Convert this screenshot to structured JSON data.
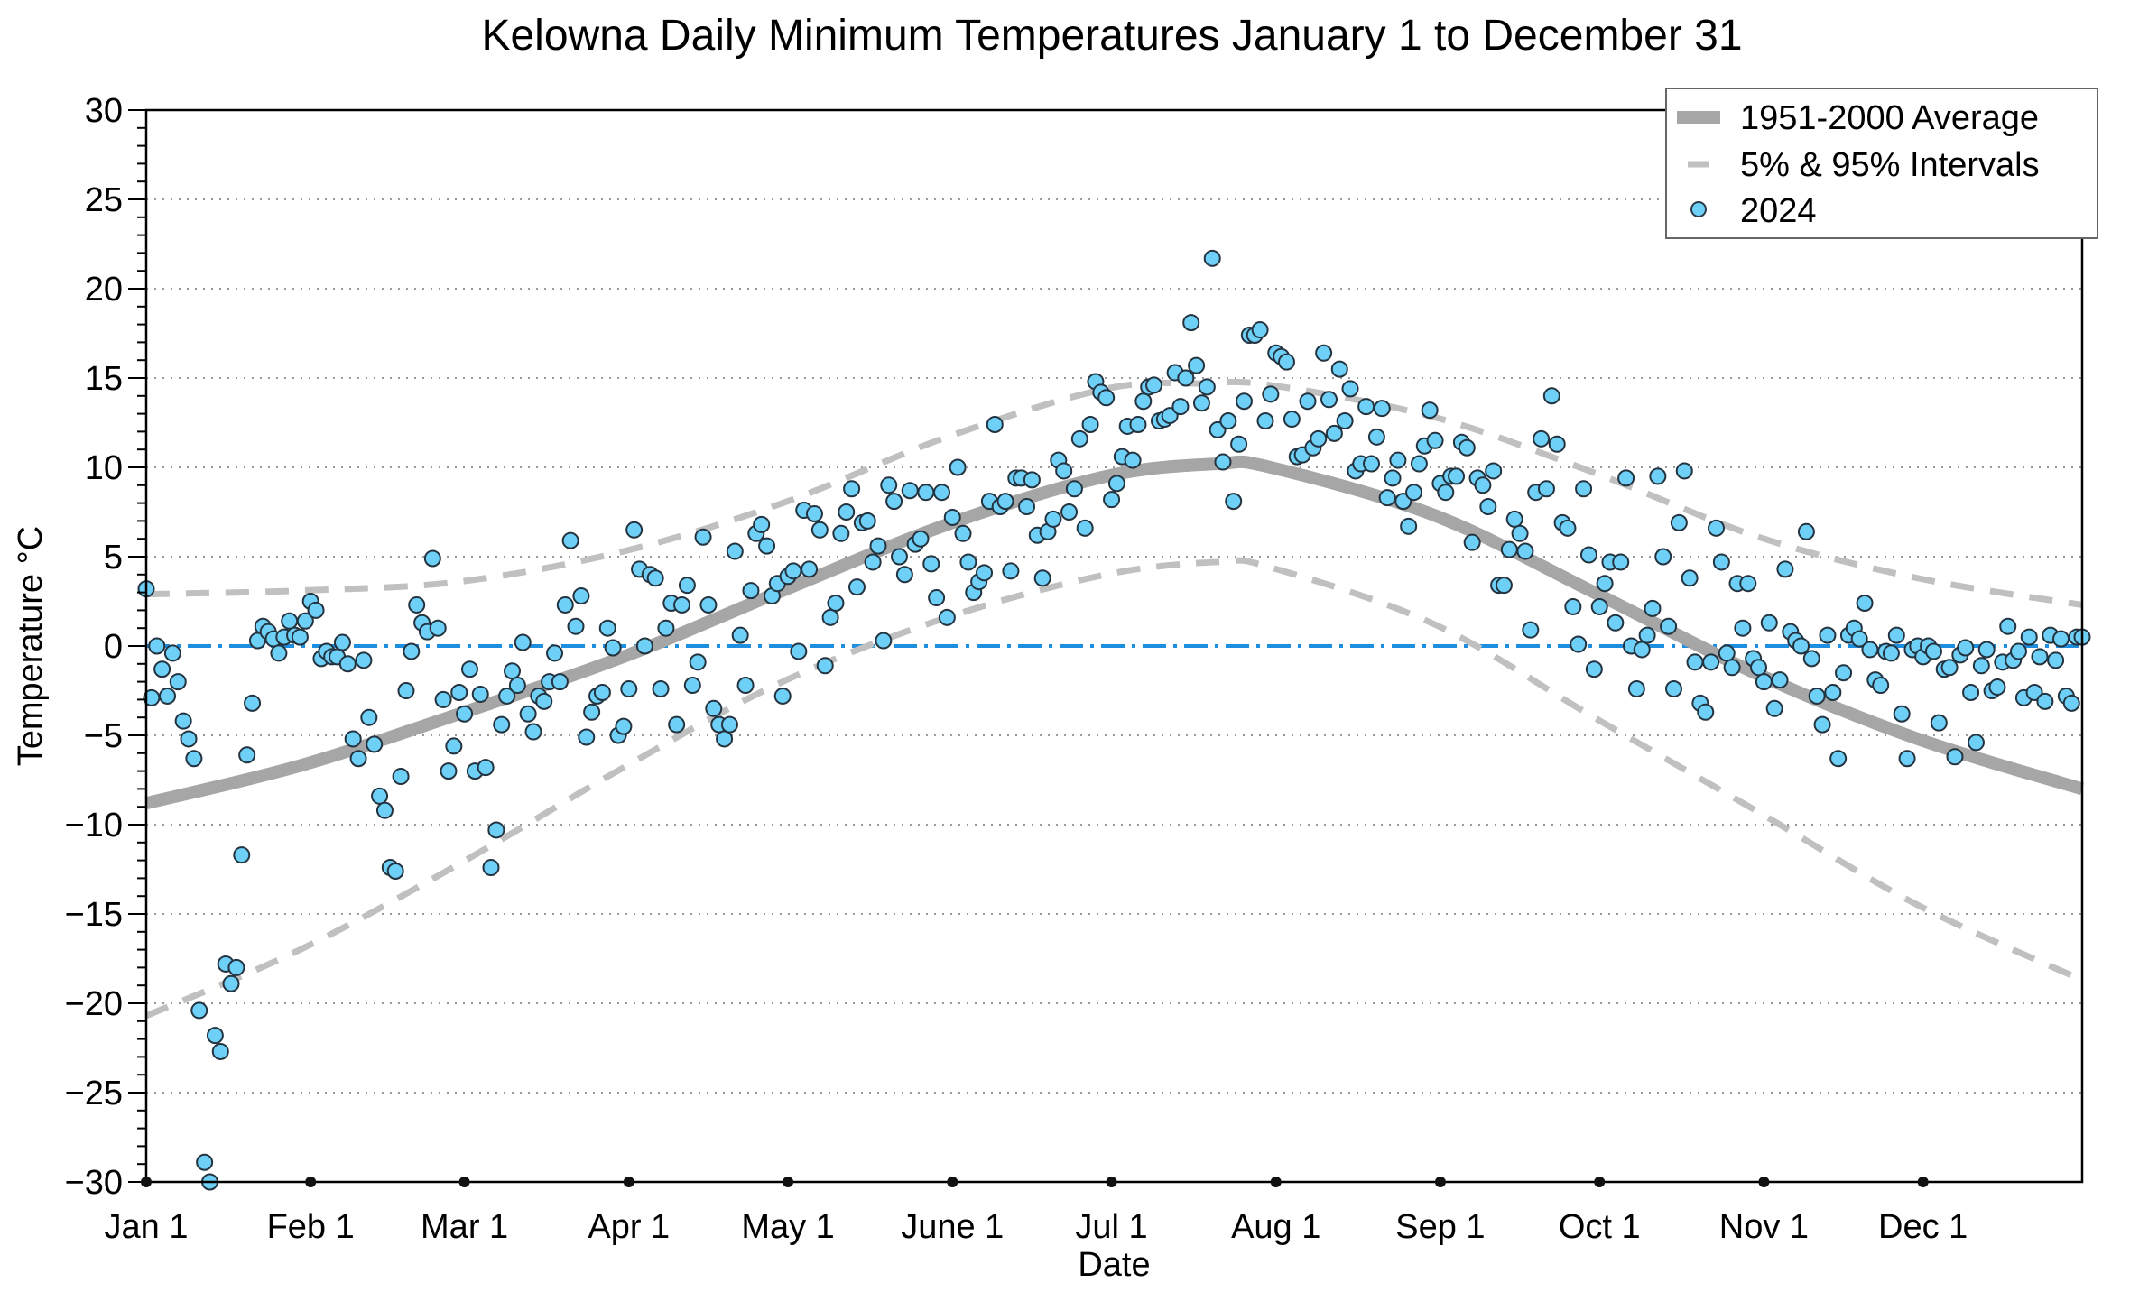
{
  "chart_data": {
    "type": "scatter",
    "title": "Kelowna Daily Minimum Temperatures January 1 to December 31",
    "xlabel": "Date",
    "ylabel": "Temperature °C",
    "xlim": [
      1,
      366
    ],
    "ylim": [
      -30,
      30
    ],
    "grid": "horizontal-dotted",
    "legend_position": "top-right",
    "y_ticks": [
      30,
      25,
      20,
      15,
      10,
      5,
      0,
      -5,
      -10,
      -15,
      -20,
      -25,
      -30
    ],
    "y_tick_labels": [
      "30",
      "25",
      "20",
      "15",
      "10",
      "5",
      "0",
      "−5",
      "−10",
      "−15",
      "−20",
      "−25",
      "−30"
    ],
    "x_ticks": [
      {
        "day": 1,
        "label": "Jan 1"
      },
      {
        "day": 32,
        "label": "Feb 1"
      },
      {
        "day": 61,
        "label": "Mar 1"
      },
      {
        "day": 92,
        "label": "Apr 1"
      },
      {
        "day": 122,
        "label": "May 1"
      },
      {
        "day": 153,
        "label": "June 1"
      },
      {
        "day": 183,
        "label": "Jul 1"
      },
      {
        "day": 214,
        "label": "Aug 1"
      },
      {
        "day": 245,
        "label": "Sep 1"
      },
      {
        "day": 275,
        "label": "Oct 1"
      },
      {
        "day": 306,
        "label": "Nov 1"
      },
      {
        "day": 336,
        "label": "Dec 1"
      }
    ],
    "legend": [
      {
        "label": "1951-2000 Average",
        "style": "thick-solid",
        "color": "#a6a6a6"
      },
      {
        "label": "5% & 95% Intervals",
        "style": "dashed",
        "color": "#c0c0c0"
      },
      {
        "label": "2024",
        "style": "marker",
        "color": "#6fd0f7"
      }
    ],
    "zero_line": {
      "value": 0,
      "color": "#1e8fe0",
      "style": "dash-dot"
    },
    "series": [
      {
        "name": "1951-2000 Average",
        "color": "#a6a6a6",
        "x": [
          1,
          30,
          60,
          91,
          121,
          152,
          182,
          203,
          213,
          244,
          274,
          305,
          335,
          366
        ],
        "y": [
          -8.8,
          -6.7,
          -3.8,
          -0.6,
          3.1,
          6.8,
          9.5,
          10.2,
          10.0,
          7.3,
          3.0,
          -1.6,
          -5.2,
          -8.0
        ]
      },
      {
        "name": "95% Interval",
        "color": "#c0c0c0",
        "x": [
          1,
          30,
          60,
          91,
          121,
          152,
          182,
          200,
          213,
          244,
          274,
          305,
          335,
          366
        ],
        "y": [
          2.9,
          3.1,
          3.6,
          5.3,
          8.0,
          11.7,
          14.4,
          14.7,
          14.6,
          12.8,
          9.7,
          6.1,
          3.8,
          2.3
        ]
      },
      {
        "name": "5% Interval",
        "color": "#c0c0c0",
        "x": [
          1,
          30,
          60,
          91,
          121,
          152,
          182,
          203,
          213,
          244,
          274,
          305,
          335,
          366
        ],
        "y": [
          -20.7,
          -17.0,
          -12.2,
          -6.8,
          -2.0,
          1.6,
          4.0,
          4.7,
          4.4,
          1.2,
          -4.0,
          -9.3,
          -14.5,
          -18.7
        ]
      },
      {
        "name": "2024",
        "color": "#6fd0f7",
        "x": [
          1,
          2,
          3,
          4,
          5,
          6,
          7,
          8,
          9,
          10,
          11,
          12,
          13,
          14,
          15,
          16,
          17,
          18,
          19,
          20,
          21,
          22,
          23,
          24,
          25,
          26,
          27,
          28,
          29,
          30,
          31,
          32,
          33,
          34,
          35,
          36,
          37,
          38,
          39,
          40,
          41,
          42,
          43,
          44,
          45,
          46,
          47,
          48,
          49,
          50,
          51,
          52,
          53,
          54,
          55,
          56,
          57,
          58,
          59,
          60,
          61,
          62,
          63,
          64,
          65,
          66,
          67,
          68,
          69,
          70,
          71,
          72,
          73,
          74,
          75,
          76,
          77,
          78,
          79,
          80,
          81,
          82,
          83,
          84,
          85,
          86,
          87,
          88,
          89,
          90,
          91,
          92,
          93,
          94,
          95,
          96,
          97,
          98,
          99,
          100,
          101,
          102,
          103,
          104,
          105,
          106,
          107,
          108,
          109,
          110,
          111,
          112,
          113,
          114,
          115,
          116,
          117,
          118,
          119,
          120,
          121,
          122,
          123,
          124,
          125,
          126,
          127,
          128,
          129,
          130,
          131,
          132,
          133,
          134,
          135,
          136,
          137,
          138,
          139,
          140,
          141,
          142,
          143,
          144,
          145,
          146,
          147,
          148,
          149,
          150,
          151,
          152,
          153,
          154,
          155,
          156,
          157,
          158,
          159,
          160,
          161,
          162,
          163,
          164,
          165,
          166,
          167,
          168,
          169,
          170,
          171,
          172,
          173,
          174,
          175,
          176,
          177,
          178,
          179,
          180,
          181,
          182,
          183,
          184,
          185,
          186,
          187,
          188,
          189,
          190,
          191,
          192,
          193,
          194,
          195,
          196,
          197,
          198,
          199,
          200,
          201,
          202,
          203,
          204,
          205,
          206,
          207,
          208,
          209,
          210,
          211,
          212,
          213,
          214,
          215,
          216,
          217,
          218,
          219,
          220,
          221,
          222,
          223,
          224,
          225,
          226,
          227,
          228,
          229,
          230,
          231,
          232,
          233,
          234,
          235,
          236,
          237,
          238,
          239,
          240,
          241,
          242,
          243,
          244,
          245,
          246,
          247,
          248,
          249,
          250,
          251,
          252,
          253,
          254,
          255,
          256,
          257,
          258,
          259,
          260,
          261,
          262,
          263,
          264,
          265,
          266,
          267,
          268,
          269,
          270,
          271,
          272,
          273,
          274,
          275,
          276,
          277,
          278,
          279,
          280,
          281,
          282,
          283,
          284,
          285,
          286,
          287,
          288,
          289,
          290,
          291,
          292,
          293,
          294,
          295,
          296,
          297,
          298,
          299,
          300,
          301,
          302,
          303,
          304,
          305,
          306,
          307,
          308,
          309,
          310,
          311,
          312,
          313,
          314,
          315,
          316,
          317,
          318,
          319,
          320,
          321,
          322,
          323,
          324,
          325,
          326,
          327,
          328,
          329,
          330,
          331,
          332,
          333,
          334,
          335,
          336,
          337,
          338,
          339,
          340,
          341,
          342,
          343,
          344,
          345,
          346,
          347,
          348,
          349,
          350,
          351,
          352,
          353,
          354,
          355,
          356,
          357,
          358,
          359,
          360,
          361,
          362,
          363,
          364,
          365,
          366
        ],
        "y": [
          3.2,
          -2.9,
          0,
          -1.3,
          -2.8,
          -0.4,
          -2,
          -4.2,
          -5.2,
          -6.3,
          -20.4,
          -28.9,
          -30,
          -21.8,
          -22.7,
          -17.8,
          -18.9,
          -18,
          -11.7,
          -6.1,
          -3.2,
          0.3,
          1.1,
          0.8,
          0.4,
          -0.4,
          0.5,
          1.4,
          0.6,
          0.5,
          1.4,
          2.5,
          2,
          -0.7,
          -0.3,
          -0.6,
          -0.6,
          0.2,
          -1,
          -5.2,
          -6.3,
          -0.8,
          -4,
          -5.5,
          -8.4,
          -9.2,
          -12.4,
          -12.6,
          -7.3,
          -2.5,
          -0.3,
          2.3,
          1.3,
          0.8,
          4.9,
          1,
          -3,
          -7,
          -5.6,
          -2.6,
          -3.8,
          -1.3,
          -7,
          -2.7,
          -6.8,
          -12.4,
          -10.3,
          -4.4,
          -2.8,
          -1.4,
          -2.2,
          0.2,
          -3.8,
          -4.8,
          -2.8,
          -3.1,
          -2,
          -0.4,
          -2,
          2.3,
          5.9,
          1.1,
          2.8,
          -5.1,
          -3.7,
          -2.8,
          -2.6,
          1,
          -0.1,
          -5,
          -4.5,
          -2.4,
          6.5,
          4.3,
          0,
          4,
          3.8,
          -2.4,
          1,
          2.4,
          -4.4,
          2.3,
          3.4,
          -2.2,
          -0.9,
          6.1,
          2.3,
          -3.5,
          -4.4,
          -5.2,
          -4.4,
          5.3,
          0.6,
          -2.2,
          3.1,
          6.3,
          6.8,
          5.6,
          2.8,
          3.5,
          -2.8,
          3.9,
          4.2,
          -0.3,
          7.6,
          4.3,
          7.4,
          6.5,
          -1.1,
          1.6,
          2.4,
          6.3,
          7.5,
          8.8,
          3.3,
          6.9,
          7,
          4.7,
          5.6,
          0.3,
          9,
          8.1,
          5,
          4,
          8.7,
          5.7,
          6,
          8.6,
          4.6,
          2.7,
          8.6,
          1.6,
          7.2,
          10,
          6.3,
          4.7,
          3,
          3.6,
          4.1,
          8.1,
          12.4,
          7.8,
          8.1,
          4.2,
          9.4,
          9.4,
          7.8,
          9.3,
          6.2,
          3.8,
          6.4,
          7.1,
          10.4,
          9.8,
          7.5,
          8.8,
          11.6,
          6.6,
          12.4,
          14.8,
          14.2,
          13.9,
          8.2,
          9.1,
          10.6,
          12.3,
          10.4,
          12.4,
          13.7,
          14.5,
          14.6,
          12.6,
          12.7,
          12.9,
          15.3,
          13.4,
          15,
          18.1,
          15.7,
          13.6,
          14.5,
          21.7,
          12.1,
          10.3,
          12.6,
          8.1,
          11.3,
          13.7,
          17.4,
          17.4,
          17.7,
          12.6,
          14.1,
          16.4,
          16.2,
          15.9,
          12.7,
          10.6,
          10.7,
          13.7,
          11.1,
          11.6,
          16.4,
          13.8,
          11.9,
          15.5,
          12.6,
          14.4,
          9.8,
          10.2,
          13.4,
          10.2,
          11.7,
          13.3,
          8.3,
          9.4,
          10.4,
          8.1,
          6.7,
          8.6,
          10.2,
          11.2,
          13.2,
          11.5,
          9.1,
          8.6,
          9.5,
          9.5,
          11.4,
          11.1,
          5.8,
          9.4,
          9,
          7.8,
          9.8,
          3.4,
          3.4,
          5.4,
          7.1,
          6.3,
          5.3,
          0.9,
          8.6,
          11.6,
          8.8,
          14,
          11.3,
          6.9,
          6.6,
          2.2,
          0.1,
          8.8,
          5.1,
          -1.3,
          2.2,
          3.5,
          4.7,
          1.3,
          4.7,
          9.4,
          0,
          -2.4,
          -0.2,
          0.6,
          2.1,
          9.5,
          5,
          1.1,
          -2.4,
          6.9,
          9.8,
          3.8,
          -0.9,
          -3.2,
          -3.7,
          -0.9,
          6.6,
          4.7,
          -0.4,
          -1.2,
          3.5,
          1,
          3.5,
          -0.7,
          -1.2,
          -2,
          1.3,
          -3.5,
          -1.9,
          4.3,
          0.8,
          0.3,
          0,
          6.4,
          -0.7,
          -2.8,
          -4.4,
          0.6,
          -2.6,
          -6.3,
          -1.5,
          0.6,
          1,
          0.4,
          2.4,
          -0.2,
          -1.9,
          -2.2,
          -0.3,
          -0.4,
          0.6,
          -3.8,
          -6.3,
          -0.2,
          0,
          -0.6,
          0,
          -0.3,
          -4.3,
          -1.3,
          -1.2,
          -6.2,
          -0.5,
          -0.1,
          -2.6,
          -5.4,
          -1.1,
          -0.2,
          -2.5,
          -2.3,
          -0.9,
          1.1,
          -0.8,
          -0.3,
          -2.9,
          0.5,
          -2.6,
          -0.6,
          -3.1,
          0.6,
          -0.8,
          0.4,
          -2.8,
          -3.2,
          0.5,
          0.5
        ]
      }
    ]
  }
}
